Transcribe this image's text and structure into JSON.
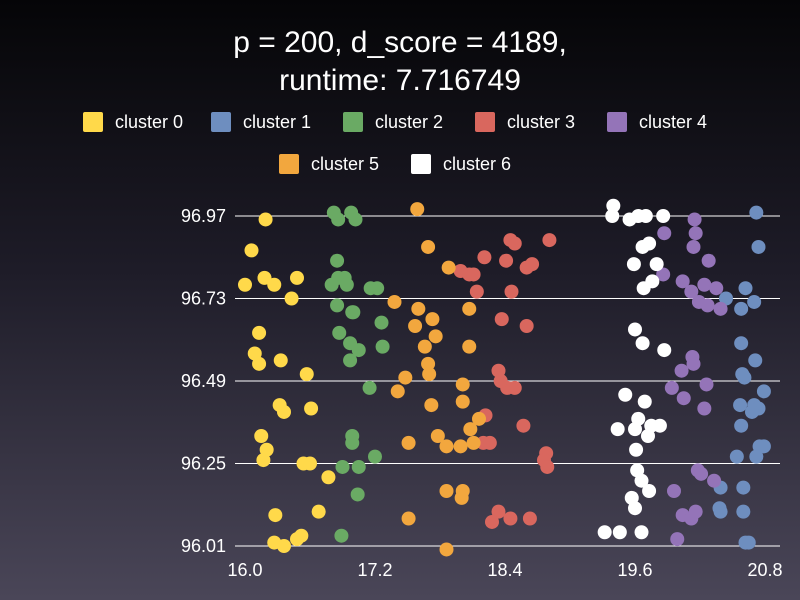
{
  "chart_data": {
    "type": "scatter",
    "title_lines": [
      "p = 200, d_score = 4189,",
      "runtime: 7.716749"
    ],
    "xlabel": "",
    "ylabel": "",
    "xlim": [
      16.0,
      20.8
    ],
    "ylim": [
      96.01,
      96.97
    ],
    "x_ticks": [
      "16.0",
      "17.2",
      "18.4",
      "19.6",
      "20.8"
    ],
    "y_ticks": [
      "96.97",
      "96.73",
      "96.49",
      "96.25",
      "96.01"
    ],
    "grid": "horizontal",
    "legend_position": "top",
    "series": [
      {
        "name": "cluster 0",
        "color": "#ffd94a",
        "points": [
          [
            16.19,
            96.96
          ],
          [
            16.06,
            96.87
          ],
          [
            16.18,
            96.79
          ],
          [
            16.27,
            96.77
          ],
          [
            16.48,
            96.79
          ],
          [
            16.0,
            96.77
          ],
          [
            16.43,
            96.73
          ],
          [
            16.13,
            96.63
          ],
          [
            16.09,
            96.57
          ],
          [
            16.33,
            96.55
          ],
          [
            16.13,
            96.54
          ],
          [
            16.57,
            96.51
          ],
          [
            16.32,
            96.42
          ],
          [
            16.36,
            96.4
          ],
          [
            16.61,
            96.41
          ],
          [
            16.15,
            96.33
          ],
          [
            16.2,
            96.29
          ],
          [
            16.17,
            96.26
          ],
          [
            16.54,
            96.25
          ],
          [
            16.6,
            96.25
          ],
          [
            16.77,
            96.21
          ],
          [
            16.28,
            96.1
          ],
          [
            16.68,
            96.11
          ],
          [
            16.27,
            96.02
          ],
          [
            16.36,
            96.01
          ],
          [
            16.48,
            96.03
          ],
          [
            16.52,
            96.04
          ]
        ]
      },
      {
        "name": "cluster 1",
        "color": "#6e8ebf",
        "points": [
          [
            20.72,
            96.98
          ],
          [
            20.74,
            96.88
          ],
          [
            20.62,
            96.76
          ],
          [
            20.44,
            96.73
          ],
          [
            20.58,
            96.7
          ],
          [
            20.7,
            96.72
          ],
          [
            20.58,
            96.6
          ],
          [
            20.71,
            96.55
          ],
          [
            20.59,
            96.51
          ],
          [
            20.61,
            96.5
          ],
          [
            20.79,
            96.46
          ],
          [
            20.57,
            96.42
          ],
          [
            20.7,
            96.42
          ],
          [
            20.74,
            96.41
          ],
          [
            20.68,
            96.4
          ],
          [
            20.58,
            96.36
          ],
          [
            20.75,
            96.3
          ],
          [
            20.79,
            96.3
          ],
          [
            20.72,
            96.27
          ],
          [
            20.54,
            96.27
          ],
          [
            20.39,
            96.18
          ],
          [
            20.6,
            96.18
          ],
          [
            20.38,
            96.12
          ],
          [
            20.39,
            96.11
          ],
          [
            20.6,
            96.11
          ],
          [
            20.62,
            96.02
          ],
          [
            20.65,
            96.02
          ]
        ]
      },
      {
        "name": "cluster 2",
        "color": "#6aaa64",
        "points": [
          [
            16.82,
            96.98
          ],
          [
            16.86,
            96.96
          ],
          [
            16.98,
            96.98
          ],
          [
            17.02,
            96.96
          ],
          [
            16.85,
            96.84
          ],
          [
            16.92,
            96.79
          ],
          [
            16.86,
            96.79
          ],
          [
            16.94,
            96.77
          ],
          [
            16.8,
            96.77
          ],
          [
            17.16,
            96.76
          ],
          [
            17.22,
            96.76
          ],
          [
            16.85,
            96.71
          ],
          [
            17.0,
            96.69
          ],
          [
            16.99,
            96.69
          ],
          [
            17.26,
            96.66
          ],
          [
            16.87,
            96.63
          ],
          [
            16.97,
            96.6
          ],
          [
            17.05,
            96.58
          ],
          [
            17.27,
            96.59
          ],
          [
            16.97,
            96.55
          ],
          [
            17.15,
            96.47
          ],
          [
            16.99,
            96.33
          ],
          [
            16.99,
            96.31
          ],
          [
            17.2,
            96.27
          ],
          [
            16.9,
            96.24
          ],
          [
            17.05,
            96.24
          ],
          [
            17.04,
            96.16
          ],
          [
            16.89,
            96.04
          ]
        ]
      },
      {
        "name": "cluster 3",
        "color": "#d9675e",
        "points": [
          [
            18.45,
            96.9
          ],
          [
            18.49,
            96.89
          ],
          [
            18.81,
            96.9
          ],
          [
            18.21,
            96.85
          ],
          [
            18.41,
            96.84
          ],
          [
            18.6,
            96.82
          ],
          [
            18.65,
            96.83
          ],
          [
            17.99,
            96.81
          ],
          [
            18.07,
            96.8
          ],
          [
            18.11,
            96.8
          ],
          [
            18.14,
            96.75
          ],
          [
            18.46,
            96.75
          ],
          [
            18.37,
            96.67
          ],
          [
            18.6,
            96.65
          ],
          [
            18.34,
            96.52
          ],
          [
            18.42,
            96.47
          ],
          [
            18.36,
            96.49
          ],
          [
            18.49,
            96.47
          ],
          [
            18.22,
            96.39
          ],
          [
            18.57,
            96.36
          ],
          [
            18.26,
            96.31
          ],
          [
            18.2,
            96.31
          ],
          [
            18.78,
            96.28
          ],
          [
            18.76,
            96.26
          ],
          [
            18.79,
            96.24
          ],
          [
            18.34,
            96.11
          ],
          [
            18.28,
            96.08
          ],
          [
            18.45,
            96.09
          ],
          [
            18.63,
            96.09
          ]
        ]
      },
      {
        "name": "cluster 4",
        "color": "#9474b8",
        "points": [
          [
            20.15,
            96.96
          ],
          [
            20.16,
            96.92
          ],
          [
            19.87,
            96.92
          ],
          [
            20.14,
            96.88
          ],
          [
            20.28,
            96.84
          ],
          [
            19.86,
            96.8
          ],
          [
            20.04,
            96.78
          ],
          [
            20.24,
            96.77
          ],
          [
            20.35,
            96.76
          ],
          [
            20.12,
            96.75
          ],
          [
            20.19,
            96.72
          ],
          [
            20.27,
            96.71
          ],
          [
            20.39,
            96.7
          ],
          [
            20.13,
            96.56
          ],
          [
            20.14,
            96.54
          ],
          [
            20.03,
            96.52
          ],
          [
            20.26,
            96.48
          ],
          [
            19.94,
            96.47
          ],
          [
            20.05,
            96.44
          ],
          [
            20.24,
            96.41
          ],
          [
            20.18,
            96.23
          ],
          [
            20.21,
            96.22
          ],
          [
            20.33,
            96.2
          ],
          [
            19.96,
            96.17
          ],
          [
            20.04,
            96.1
          ],
          [
            20.12,
            96.09
          ],
          [
            20.16,
            96.11
          ],
          [
            19.99,
            96.03
          ]
        ]
      },
      {
        "name": "cluster 5",
        "color": "#f2a73e",
        "points": [
          [
            17.59,
            96.99
          ],
          [
            17.69,
            96.88
          ],
          [
            17.88,
            96.82
          ],
          [
            17.38,
            96.72
          ],
          [
            17.6,
            96.7
          ],
          [
            17.57,
            96.65
          ],
          [
            17.76,
            96.62
          ],
          [
            17.66,
            96.59
          ],
          [
            18.07,
            96.7
          ],
          [
            17.73,
            96.67
          ],
          [
            18.07,
            96.59
          ],
          [
            17.69,
            96.54
          ],
          [
            17.7,
            96.51
          ],
          [
            17.41,
            96.46
          ],
          [
            17.72,
            96.42
          ],
          [
            17.48,
            96.5
          ],
          [
            18.01,
            96.48
          ],
          [
            18.01,
            96.43
          ],
          [
            18.16,
            96.38
          ],
          [
            18.08,
            96.35
          ],
          [
            17.51,
            96.31
          ],
          [
            17.78,
            96.33
          ],
          [
            17.86,
            96.3
          ],
          [
            17.99,
            96.3
          ],
          [
            18.11,
            96.31
          ],
          [
            17.86,
            96.17
          ],
          [
            18.01,
            96.17
          ],
          [
            17.51,
            96.09
          ],
          [
            18.0,
            96.15
          ],
          [
            17.86,
            96.0
          ]
        ]
      },
      {
        "name": "cluster 6",
        "color": "#ffffff",
        "points": [
          [
            19.4,
            97.0
          ],
          [
            19.39,
            96.97
          ],
          [
            19.55,
            96.96
          ],
          [
            19.63,
            96.97
          ],
          [
            19.7,
            96.97
          ],
          [
            19.86,
            96.97
          ],
          [
            19.73,
            96.89
          ],
          [
            19.67,
            96.88
          ],
          [
            19.59,
            96.83
          ],
          [
            19.8,
            96.83
          ],
          [
            19.76,
            96.78
          ],
          [
            19.68,
            96.76
          ],
          [
            19.6,
            96.64
          ],
          [
            19.67,
            96.6
          ],
          [
            19.87,
            96.58
          ],
          [
            19.51,
            96.45
          ],
          [
            19.69,
            96.43
          ],
          [
            19.63,
            96.38
          ],
          [
            19.44,
            96.35
          ],
          [
            19.6,
            96.35
          ],
          [
            19.75,
            96.36
          ],
          [
            19.83,
            96.36
          ],
          [
            19.72,
            96.33
          ],
          [
            19.61,
            96.29
          ],
          [
            19.62,
            96.23
          ],
          [
            19.66,
            96.2
          ],
          [
            19.73,
            96.17
          ],
          [
            19.57,
            96.15
          ],
          [
            19.6,
            96.12
          ],
          [
            19.32,
            96.05
          ],
          [
            19.66,
            96.05
          ],
          [
            19.46,
            96.05
          ]
        ]
      }
    ]
  }
}
